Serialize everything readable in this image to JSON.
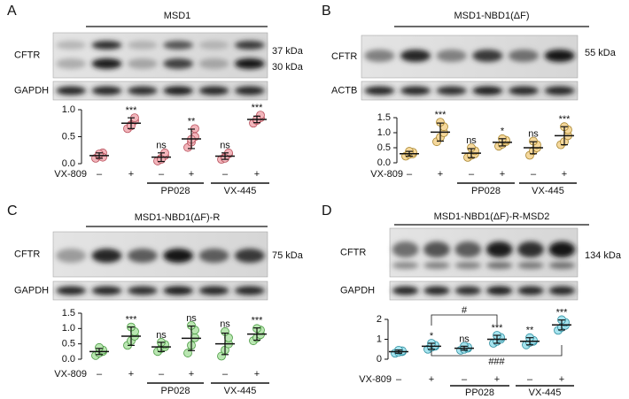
{
  "chart_data": [
    {
      "type": "dotplot",
      "letter": "A",
      "title": "MSD1",
      "blot_labels": [
        "CFTR",
        "GAPDH"
      ],
      "kda": [
        "37 kDa",
        "30 kDa"
      ],
      "x_label": "VX-809",
      "categories": [
        "–",
        "+",
        "–",
        "+",
        "–",
        "+"
      ],
      "groups": [
        {
          "label": "PP028",
          "start": 2,
          "end": 3
        },
        {
          "label": "VX-445",
          "start": 4,
          "end": 5
        }
      ],
      "color": "#f2b5bb",
      "edge": "#b8505c",
      "values": [
        0.15,
        0.75,
        0.12,
        0.46,
        0.14,
        0.82
      ],
      "errors": [
        0.05,
        0.1,
        0.08,
        0.18,
        0.06,
        0.06
      ],
      "points": [
        [
          0.1,
          0.15,
          0.2,
          0.12,
          0.18
        ],
        [
          0.65,
          0.72,
          0.8,
          0.85,
          0.7
        ],
        [
          0.05,
          0.1,
          0.15,
          0.2,
          0.08
        ],
        [
          0.3,
          0.4,
          0.5,
          0.65,
          0.45
        ],
        [
          0.08,
          0.12,
          0.18,
          0.2,
          0.1
        ],
        [
          0.75,
          0.8,
          0.85,
          0.9,
          0.82
        ]
      ],
      "significance": [
        null,
        "***",
        "ns",
        "**",
        "ns",
        "***"
      ],
      "ylim": [
        0,
        1
      ],
      "yticks": [
        {
          "value": 0,
          "label": "0.0"
        },
        {
          "value": 0.5,
          "label": "0.5"
        },
        {
          "value": 1,
          "label": "1.0"
        }
      ]
    },
    {
      "type": "dotplot",
      "letter": "B",
      "title": "MSD1-NBD1(ΔF)",
      "blot_labels": [
        "CFTR",
        "ACTB"
      ],
      "kda": [
        "55 kDa"
      ],
      "x_label": "VX-809",
      "categories": [
        "–",
        "+",
        "–",
        "+",
        "–",
        "+"
      ],
      "groups": [
        {
          "label": "PP028",
          "start": 2,
          "end": 3
        },
        {
          "label": "VX-445",
          "start": 4,
          "end": 5
        }
      ],
      "color": "#f5d89c",
      "edge": "#a8852e",
      "values": [
        0.3,
        1.02,
        0.32,
        0.68,
        0.5,
        0.9
      ],
      "errors": [
        0.08,
        0.3,
        0.15,
        0.12,
        0.2,
        0.3
      ],
      "points": [
        [
          0.22,
          0.28,
          0.3,
          0.35,
          0.38
        ],
        [
          0.7,
          0.85,
          1.0,
          1.2,
          1.35
        ],
        [
          0.18,
          0.25,
          0.3,
          0.4,
          0.5
        ],
        [
          0.55,
          0.62,
          0.7,
          0.75,
          0.8
        ],
        [
          0.25,
          0.4,
          0.5,
          0.6,
          0.72
        ],
        [
          0.6,
          0.7,
          0.9,
          1.1,
          1.2
        ]
      ],
      "significance": [
        null,
        "***",
        "ns",
        "*",
        "ns",
        "***"
      ],
      "ylim": [
        0,
        1.5
      ],
      "yticks": [
        {
          "value": 0,
          "label": "0.0"
        },
        0.5,
        {
          "value": 1,
          "label": "1.0"
        },
        1.5
      ]
    },
    {
      "type": "dotplot",
      "letter": "C",
      "title": "MSD1-NBD1(ΔF)-R",
      "blot_labels": [
        "CFTR",
        "GAPDH"
      ],
      "kda": [
        "75 kDa"
      ],
      "x_label": "VX-809",
      "categories": [
        "–",
        "+",
        "–",
        "+",
        "–",
        "+"
      ],
      "groups": [
        {
          "label": "PP028",
          "start": 2,
          "end": 3
        },
        {
          "label": "VX-445",
          "start": 4,
          "end": 5
        }
      ],
      "color": "#b9e6b1",
      "edge": "#4a9a42",
      "values": [
        0.25,
        0.75,
        0.4,
        0.68,
        0.5,
        0.82
      ],
      "errors": [
        0.1,
        0.3,
        0.15,
        0.4,
        0.35,
        0.2
      ],
      "points": [
        [
          0.12,
          0.2,
          0.25,
          0.3,
          0.38
        ],
        [
          0.45,
          0.6,
          0.75,
          0.9,
          1.05
        ],
        [
          0.25,
          0.35,
          0.4,
          0.48,
          0.55
        ],
        [
          0.2,
          0.45,
          0.7,
          0.95,
          1.1
        ],
        [
          0.1,
          0.3,
          0.5,
          0.7,
          0.9
        ],
        [
          0.6,
          0.7,
          0.8,
          0.95,
          1.0
        ]
      ],
      "significance": [
        null,
        "***",
        "ns",
        "ns",
        "ns",
        "***"
      ],
      "ylim": [
        0,
        1.5
      ],
      "yticks": [
        {
          "value": 0,
          "label": "0.0"
        },
        0.5,
        {
          "value": 1,
          "label": "1.0"
        },
        1.5
      ]
    },
    {
      "type": "dotplot",
      "letter": "D",
      "title": "MSD1-NBD1(ΔF)-R-MSD2",
      "blot_labels": [
        "CFTR",
        "GAPDH"
      ],
      "kda": [
        "134 kDa"
      ],
      "x_label": "VX-809",
      "categories": [
        "–",
        "+",
        "–",
        "+",
        "–",
        "+"
      ],
      "groups": [
        {
          "label": "PP028",
          "start": 2,
          "end": 3
        },
        {
          "label": "VX-445",
          "start": 4,
          "end": 5
        }
      ],
      "color": "#a6e3ee",
      "edge": "#2f8fa0",
      "values": [
        0.38,
        0.65,
        0.55,
        1.0,
        0.9,
        1.72
      ],
      "errors": [
        0.08,
        0.15,
        0.1,
        0.2,
        0.18,
        0.25
      ],
      "points": [
        [
          0.3,
          0.35,
          0.38,
          0.42,
          0.45
        ],
        [
          0.5,
          0.6,
          0.65,
          0.7,
          0.8
        ],
        [
          0.45,
          0.5,
          0.55,
          0.6,
          0.65
        ],
        [
          0.8,
          0.9,
          1.0,
          1.1,
          1.2
        ],
        [
          0.72,
          0.85,
          0.9,
          0.95,
          1.08
        ],
        [
          1.45,
          1.6,
          1.7,
          1.85,
          1.98
        ]
      ],
      "significance": [
        null,
        "*",
        "ns",
        "***",
        "**",
        "***"
      ],
      "comparisons": [
        {
          "label": "#",
          "from": 1,
          "to": 3
        },
        {
          "label": "###",
          "from": 1,
          "to": 5
        }
      ],
      "ylim": [
        0,
        2
      ],
      "yticks": [
        0,
        1,
        2
      ]
    }
  ]
}
